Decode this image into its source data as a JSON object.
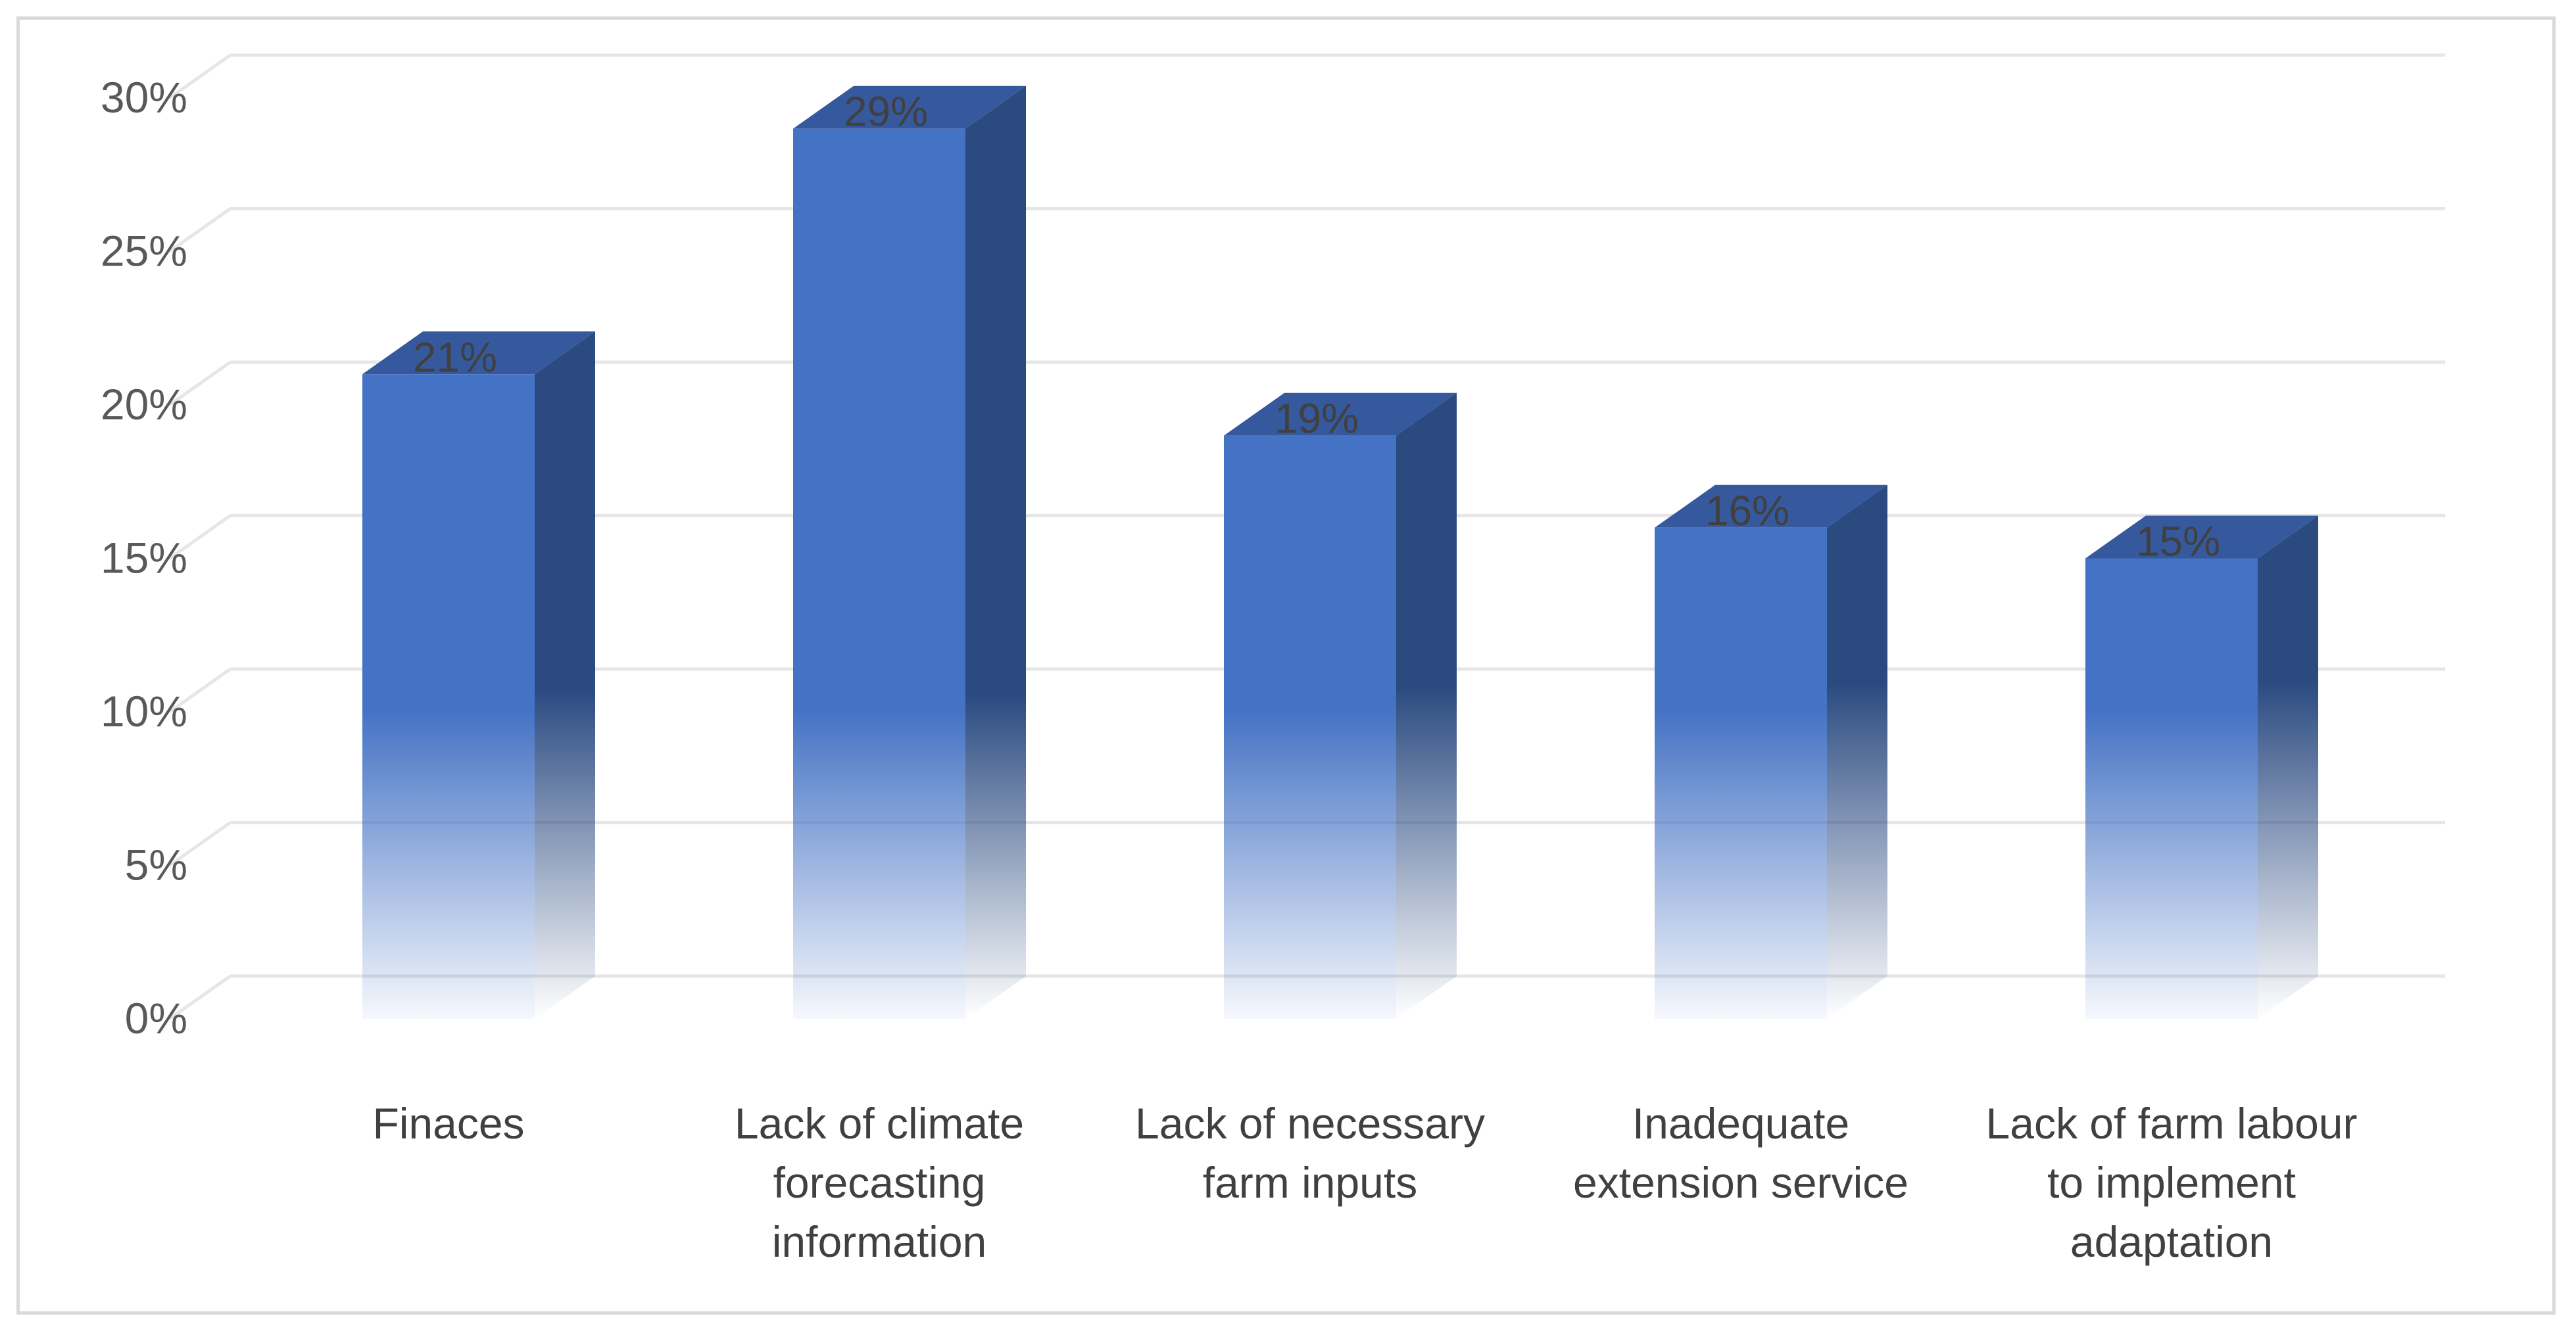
{
  "chart_data": {
    "type": "bar",
    "style": "3d-column",
    "title": "",
    "xlabel": "",
    "ylabel": "",
    "categories": [
      [
        "Finaces"
      ],
      [
        "Lack of climate",
        "forecasting",
        "information"
      ],
      [
        "Lack of necessary",
        "farm inputs"
      ],
      [
        "Inadequate",
        "extension service"
      ],
      [
        "Lack of farm labour",
        "to implement",
        "adaptation"
      ]
    ],
    "values": [
      21,
      29,
      19,
      16,
      15
    ],
    "data_labels": [
      "21%",
      "29%",
      "19%",
      "16%",
      "15%"
    ],
    "ylim": [
      0,
      30
    ],
    "y_ticks": [
      0,
      5,
      10,
      15,
      20,
      25,
      30
    ],
    "y_tick_labels": [
      "0%",
      "5%",
      "10%",
      "15%",
      "20%",
      "25%",
      "30%"
    ],
    "grid": true,
    "legend": "none",
    "colors": {
      "bar_front": "#4472c4",
      "bar_side": "#2a4a80",
      "bar_top": "#35599c",
      "gridline": "#e6e6e6",
      "frame": "#d9d9d9"
    }
  }
}
